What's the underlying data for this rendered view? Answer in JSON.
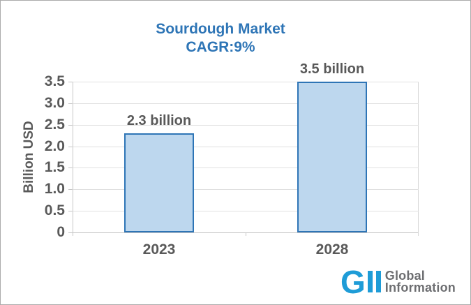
{
  "title": {
    "line1": "Sourdough Market",
    "line2": "CAGR:9%"
  },
  "y_axis": {
    "label": "Billion USD"
  },
  "chart_data": {
    "type": "bar",
    "title": "Sourdough Market CAGR:9%",
    "categories": [
      "2023",
      "2028"
    ],
    "values": [
      2.3,
      3.5
    ],
    "data_labels": [
      "2.3 billion",
      "3.5 billion"
    ],
    "xlabel": "",
    "ylabel": "Billion USD",
    "ylim": [
      0,
      3.5
    ],
    "ytick_step": 0.5,
    "ytick_labels": [
      "0",
      "0.5",
      "1.0",
      "1.5",
      "2.0",
      "2.5",
      "3.0",
      "3.5"
    ],
    "grid": true,
    "legend": false,
    "bar_fill_color": "#BDD7EE",
    "bar_border_color": "#2E75B6"
  },
  "logo": {
    "mark": "GII",
    "mark_letter": "G",
    "text_line1": "Global",
    "text_line2": "Information"
  },
  "colors": {
    "title_blue": "#2E75B6",
    "bar_fill": "#BDD7EE",
    "bar_border": "#2E75B6",
    "axis_text": "#595959",
    "gridline": "#E0E0E0",
    "axis_line": "#C6C6C6",
    "logo_blue": "#1E9CD7",
    "logo_gray": "#6D6E71",
    "frame_border": "#ABABAB"
  }
}
